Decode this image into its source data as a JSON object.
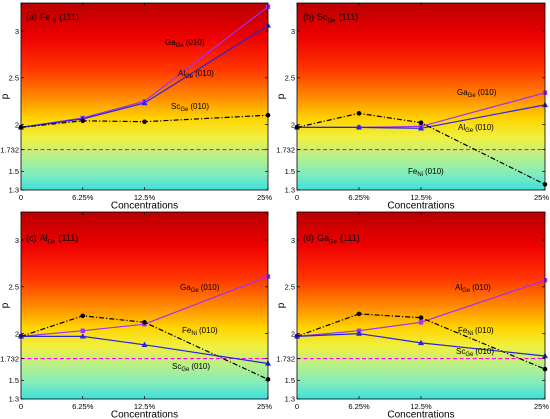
{
  "chart_data": [
    {
      "type": "line",
      "title": {
        "tag": "(a)",
        "text": "Fe",
        "sub": "Ni",
        "suffix": "(111)"
      },
      "xlabel": "Concentrations",
      "ylabel": "p",
      "x": [
        0,
        6.25,
        12.5,
        25
      ],
      "xtick_labels": [
        "0",
        "6.25%",
        "12.5%",
        "25%"
      ],
      "ytick_labels": [
        "1.3",
        "1.5",
        "1.732",
        "2",
        "2.5",
        "3"
      ],
      "xlim": [
        0,
        25
      ],
      "ylim": [
        1.3,
        3.3
      ],
      "grid": false,
      "reference_line": {
        "y": 1.732,
        "color": "#ff00ff",
        "style": "dashed"
      },
      "series": [
        {
          "name": {
            "text": "Ga",
            "sub": "Ge",
            "suffix": "(010)"
          },
          "values": [
            1.97,
            2.07,
            2.25,
            3.26
          ],
          "color": "#9d2fff",
          "marker": "square",
          "line": "solid"
        },
        {
          "name": {
            "text": "Al",
            "sub": "Ge",
            "suffix": "(010)"
          },
          "values": [
            1.97,
            2.06,
            2.23,
            3.06
          ],
          "color": "#2525dd",
          "marker": "triangle",
          "line": "solid"
        },
        {
          "name": {
            "text": "Sc",
            "sub": "Ge",
            "suffix": "(010)"
          },
          "values": [
            1.97,
            2.04,
            2.03,
            2.1
          ],
          "color": "#000000",
          "marker": "circle",
          "line": "dashdot"
        }
      ]
    },
    {
      "type": "line",
      "title": {
        "tag": "(b)",
        "text": "Sc",
        "sub": "Ge",
        "suffix": "(111)"
      },
      "xlabel": "Concentrations",
      "ylabel": "p",
      "x": [
        0,
        6.25,
        12.5,
        25
      ],
      "xtick_labels": [
        "0",
        "6.25%",
        "12.5%",
        "25%"
      ],
      "ytick_labels": [
        "1.3",
        "1.5",
        "1.732",
        "2",
        "2.5",
        "3"
      ],
      "xlim": [
        0,
        25
      ],
      "ylim": [
        1.3,
        3.3
      ],
      "grid": false,
      "reference_line": {
        "y": 1.732,
        "color": "#ff00ff",
        "style": "dashed"
      },
      "series": [
        {
          "name": {
            "text": "Ga",
            "sub": "Ge",
            "suffix": "(010)"
          },
          "values": [
            1.97,
            1.97,
            1.98,
            2.34
          ],
          "color": "#9d2fff",
          "marker": "square",
          "line": "solid"
        },
        {
          "name": {
            "text": "Al",
            "sub": "Ge",
            "suffix": "(010)"
          },
          "values": [
            1.97,
            1.97,
            1.96,
            2.21
          ],
          "color": "#2525dd",
          "marker": "triangle",
          "line": "solid"
        },
        {
          "name": {
            "text": "Fe",
            "sub": "Ni",
            "suffix": "(010)"
          },
          "values": [
            1.97,
            2.12,
            2.02,
            1.36
          ],
          "color": "#000000",
          "marker": "circle",
          "line": "dashdot"
        }
      ]
    },
    {
      "type": "line",
      "title": {
        "tag": "(c)",
        "text": "Al",
        "sub": "Ge",
        "suffix": "(111)"
      },
      "xlabel": "Concentrations",
      "ylabel": "p",
      "x": [
        0,
        6.25,
        12.5,
        25
      ],
      "xtick_labels": [
        "0",
        "6.25%",
        "12.5%",
        "25%"
      ],
      "ytick_labels": [
        "1.3",
        "1.5",
        "1.732",
        "2",
        "2.5",
        "3"
      ],
      "xlim": [
        0,
        25
      ],
      "ylim": [
        1.3,
        3.3
      ],
      "grid": false,
      "reference_line": {
        "y": 1.732,
        "color": "#ff00ff",
        "style": "dashed"
      },
      "series": [
        {
          "name": {
            "text": "Ga",
            "sub": "Ge",
            "suffix": "(010)"
          },
          "values": [
            1.97,
            2.03,
            2.1,
            2.61
          ],
          "color": "#9d2fff",
          "marker": "square",
          "line": "solid"
        },
        {
          "name": {
            "text": "Fe",
            "sub": "Ni",
            "suffix": "(010)"
          },
          "values": [
            1.97,
            2.19,
            2.12,
            1.51
          ],
          "color": "#000000",
          "marker": "circle",
          "line": "dashdot"
        },
        {
          "name": {
            "text": "Sc",
            "sub": "Ge",
            "suffix": "(010)"
          },
          "values": [
            1.97,
            1.97,
            1.88,
            1.68
          ],
          "color": "#2525dd",
          "marker": "triangle",
          "line": "solid"
        }
      ]
    },
    {
      "type": "line",
      "title": {
        "tag": "(d)",
        "text": "Ga",
        "sub": "Ge",
        "suffix": "(111)"
      },
      "xlabel": "Concentrations",
      "ylabel": "p",
      "x": [
        0,
        6.25,
        12.5,
        25
      ],
      "xtick_labels": [
        "0",
        "6.25%",
        "12.5%",
        "25%"
      ],
      "ytick_labels": [
        "1.3",
        "1.5",
        "1.732",
        "2",
        "2.5",
        "3"
      ],
      "xlim": [
        0,
        25
      ],
      "ylim": [
        1.3,
        3.3
      ],
      "grid": false,
      "reference_line": {
        "y": 1.732,
        "color": "#ff00ff",
        "style": "dashed"
      },
      "series": [
        {
          "name": {
            "text": "Al",
            "sub": "Ge",
            "suffix": "(010)"
          },
          "values": [
            1.97,
            2.03,
            2.12,
            2.57
          ],
          "color": "#9d2fff",
          "marker": "square",
          "line": "solid"
        },
        {
          "name": {
            "text": "Fe",
            "sub": "Ni",
            "suffix": "(010)"
          },
          "values": [
            1.97,
            2.21,
            2.17,
            1.62
          ],
          "color": "#000000",
          "marker": "circle",
          "line": "dashdot"
        },
        {
          "name": {
            "text": "Sc",
            "sub": "Ge",
            "suffix": "(010)"
          },
          "values": [
            1.97,
            2.0,
            1.9,
            1.76
          ],
          "color": "#2525dd",
          "marker": "triangle",
          "line": "solid"
        }
      ]
    }
  ]
}
